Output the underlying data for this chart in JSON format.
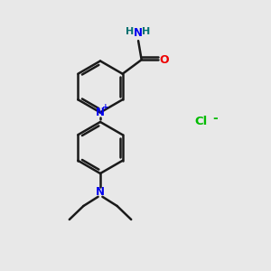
{
  "bg_color": "#e8e8e8",
  "bond_color": "#1a1a1a",
  "N_color": "#0000ee",
  "O_color": "#ee0000",
  "H_color": "#007070",
  "Cl_color": "#00bb00",
  "lw": 1.8,
  "fig_w": 3.0,
  "fig_h": 3.0,
  "dpi": 100,
  "xlim": [
    0,
    10
  ],
  "ylim": [
    0,
    10
  ]
}
